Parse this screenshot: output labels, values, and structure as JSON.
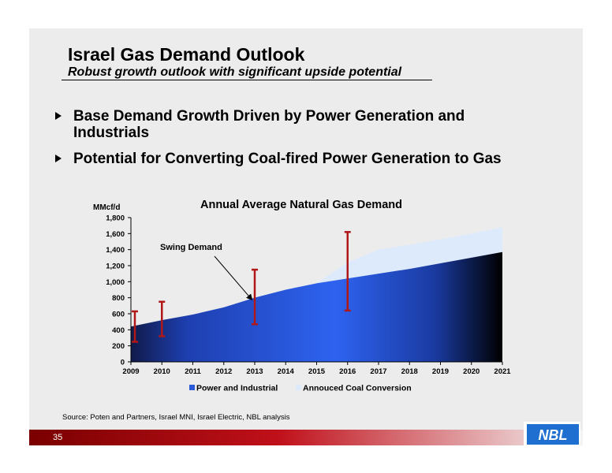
{
  "slide": {
    "title": "Israel Gas Demand Outlook",
    "subtitle": "Robust growth outlook with significant upside potential",
    "bullets": [
      "Base Demand Growth Driven by Power Generation and Industrials",
      "Potential for Converting Coal-fired Power Generation to Gas"
    ],
    "source": "Source: Poten and Partners, Israel MNI, Israel Electric, NBL analysis",
    "page_number": "35",
    "logo_text": "NBL"
  },
  "chart_data": {
    "type": "area",
    "title": "Annual Average Natural Gas Demand",
    "ylabel": "MMcf/d",
    "xlabel": "",
    "x": [
      "2009",
      "2010",
      "2011",
      "2012",
      "2013",
      "2014",
      "2015",
      "2016",
      "2017",
      "2018",
      "2019",
      "2020",
      "2021"
    ],
    "ylim": [
      0,
      1800
    ],
    "yticks": [
      0,
      200,
      400,
      600,
      800,
      1000,
      1200,
      1400,
      1600,
      1800
    ],
    "ytick_labels": [
      "0",
      "200",
      "400",
      "600",
      "800",
      "1,000",
      "1,200",
      "1,400",
      "1,600",
      "1,800"
    ],
    "series": [
      {
        "name": "Power and Industrial",
        "color": "#1f4fd8",
        "values": [
          440,
          520,
          590,
          680,
          800,
          900,
          980,
          1040,
          1100,
          1160,
          1230,
          1300,
          1370
        ]
      },
      {
        "name": "Annouced Coal Conversion",
        "color": "#ddeafc",
        "values": [
          440,
          520,
          590,
          680,
          800,
          900,
          980,
          1240,
          1400,
          1460,
          1530,
          1600,
          1680
        ]
      }
    ],
    "range_bars": [
      {
        "x": "2009",
        "low": 250,
        "high": 630
      },
      {
        "x": "2010",
        "low": 320,
        "high": 750
      },
      {
        "x": "2013",
        "low": 470,
        "high": 1150
      },
      {
        "x": "2016",
        "low": 640,
        "high": 1620
      }
    ],
    "annotation": {
      "text": "Swing Demand",
      "points_to": {
        "x": "2013",
        "y": 800
      }
    },
    "legend_position": "bottom"
  }
}
